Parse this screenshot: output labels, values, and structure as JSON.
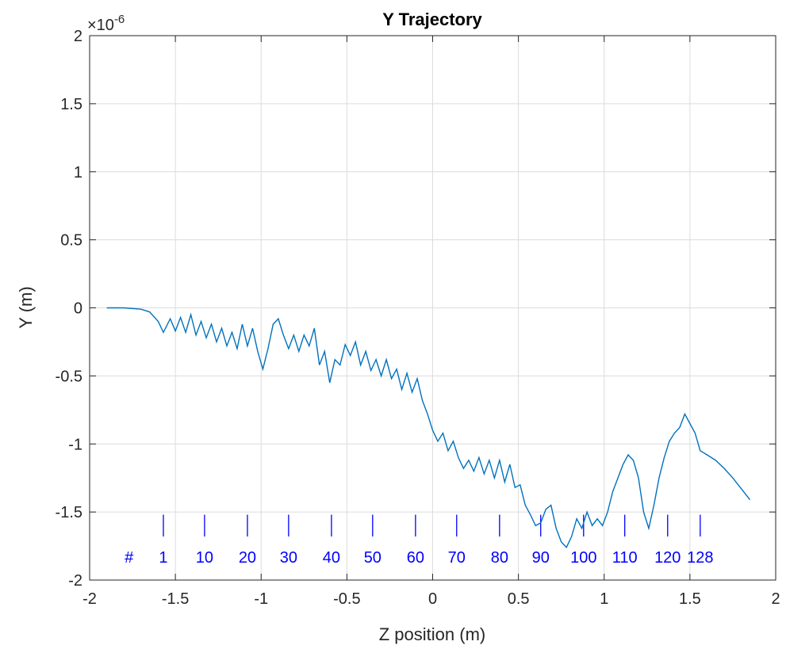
{
  "chart_data": {
    "type": "line",
    "title": "Y Trajectory",
    "xlabel": "Z position (m)",
    "ylabel": "Y (m)",
    "y_exponent_label": "×10",
    "y_exponent_power": "-6",
    "xlim": [
      -2,
      2
    ],
    "ylim": [
      -2,
      2
    ],
    "grid": true,
    "x_ticks": [
      -2,
      -1.5,
      -1,
      -0.5,
      0,
      0.5,
      1,
      1.5,
      2
    ],
    "x_tick_labels": [
      "-2",
      "-1.5",
      "-1",
      "-0.5",
      "0",
      "0.5",
      "1",
      "1.5",
      "2"
    ],
    "y_ticks": [
      -2,
      -1.5,
      -1,
      -0.5,
      0,
      0.5,
      1,
      1.5,
      2
    ],
    "y_tick_labels": [
      "-2",
      "-1.5",
      "-1",
      "-0.5",
      "0",
      "0.5",
      "1",
      "1.5",
      "2"
    ],
    "series": [
      {
        "color": "#0072bd",
        "x": [
          -1.9,
          -1.8,
          -1.7,
          -1.65,
          -1.6,
          -1.57,
          -1.53,
          -1.5,
          -1.47,
          -1.44,
          -1.41,
          -1.38,
          -1.35,
          -1.32,
          -1.29,
          -1.26,
          -1.23,
          -1.2,
          -1.17,
          -1.14,
          -1.11,
          -1.08,
          -1.05,
          -1.02,
          -0.99,
          -0.96,
          -0.93,
          -0.9,
          -0.87,
          -0.84,
          -0.81,
          -0.78,
          -0.75,
          -0.72,
          -0.69,
          -0.66,
          -0.63,
          -0.6,
          -0.57,
          -0.54,
          -0.51,
          -0.48,
          -0.45,
          -0.42,
          -0.39,
          -0.36,
          -0.33,
          -0.3,
          -0.27,
          -0.24,
          -0.21,
          -0.18,
          -0.15,
          -0.12,
          -0.09,
          -0.06,
          -0.03,
          0.0,
          0.03,
          0.06,
          0.09,
          0.12,
          0.15,
          0.18,
          0.21,
          0.24,
          0.27,
          0.3,
          0.33,
          0.36,
          0.39,
          0.42,
          0.45,
          0.48,
          0.51,
          0.54,
          0.57,
          0.6,
          0.63,
          0.66,
          0.69,
          0.72,
          0.75,
          0.78,
          0.81,
          0.84,
          0.87,
          0.9,
          0.93,
          0.96,
          0.99,
          1.02,
          1.05,
          1.08,
          1.11,
          1.14,
          1.17,
          1.2,
          1.23,
          1.26,
          1.29,
          1.32,
          1.35,
          1.38,
          1.41,
          1.44,
          1.47,
          1.5,
          1.53,
          1.56,
          1.6,
          1.65,
          1.7,
          1.75,
          1.8,
          1.85
        ],
        "y": [
          0.0,
          0.0,
          -0.01,
          -0.03,
          -0.1,
          -0.18,
          -0.08,
          -0.17,
          -0.07,
          -0.18,
          -0.05,
          -0.2,
          -0.1,
          -0.22,
          -0.12,
          -0.25,
          -0.15,
          -0.28,
          -0.18,
          -0.3,
          -0.12,
          -0.28,
          -0.15,
          -0.32,
          -0.45,
          -0.3,
          -0.12,
          -0.08,
          -0.2,
          -0.3,
          -0.2,
          -0.32,
          -0.2,
          -0.28,
          -0.15,
          -0.42,
          -0.32,
          -0.55,
          -0.38,
          -0.42,
          -0.27,
          -0.35,
          -0.25,
          -0.42,
          -0.32,
          -0.46,
          -0.38,
          -0.5,
          -0.38,
          -0.52,
          -0.45,
          -0.6,
          -0.48,
          -0.62,
          -0.52,
          -0.68,
          -0.78,
          -0.9,
          -0.98,
          -0.92,
          -1.05,
          -0.98,
          -1.1,
          -1.18,
          -1.12,
          -1.2,
          -1.1,
          -1.22,
          -1.12,
          -1.25,
          -1.12,
          -1.28,
          -1.15,
          -1.32,
          -1.3,
          -1.45,
          -1.52,
          -1.6,
          -1.58,
          -1.48,
          -1.45,
          -1.62,
          -1.72,
          -1.76,
          -1.68,
          -1.55,
          -1.62,
          -1.5,
          -1.6,
          -1.55,
          -1.6,
          -1.5,
          -1.35,
          -1.25,
          -1.15,
          -1.08,
          -1.12,
          -1.25,
          -1.5,
          -1.62,
          -1.45,
          -1.25,
          -1.1,
          -0.98,
          -0.92,
          -0.88,
          -0.78,
          -0.85,
          -0.92,
          -1.05,
          -1.08,
          -1.12,
          -1.18,
          -1.25,
          -1.33,
          -1.41
        ]
      }
    ],
    "marker_row_label": "#",
    "markers": [
      {
        "x": -1.57,
        "label": "1"
      },
      {
        "x": -1.33,
        "label": "10"
      },
      {
        "x": -1.08,
        "label": "20"
      },
      {
        "x": -0.84,
        "label": "30"
      },
      {
        "x": -0.59,
        "label": "40"
      },
      {
        "x": -0.35,
        "label": "50"
      },
      {
        "x": -0.1,
        "label": "60"
      },
      {
        "x": 0.14,
        "label": "70"
      },
      {
        "x": 0.39,
        "label": "80"
      },
      {
        "x": 0.63,
        "label": "90"
      },
      {
        "x": 0.88,
        "label": "100"
      },
      {
        "x": 1.12,
        "label": "110"
      },
      {
        "x": 1.37,
        "label": "120"
      },
      {
        "x": 1.56,
        "label": "128"
      }
    ],
    "marker_tick_y": [
      -1.52,
      -1.68
    ],
    "marker_label_y": -1.83,
    "marker_row_label_x": -1.77
  }
}
